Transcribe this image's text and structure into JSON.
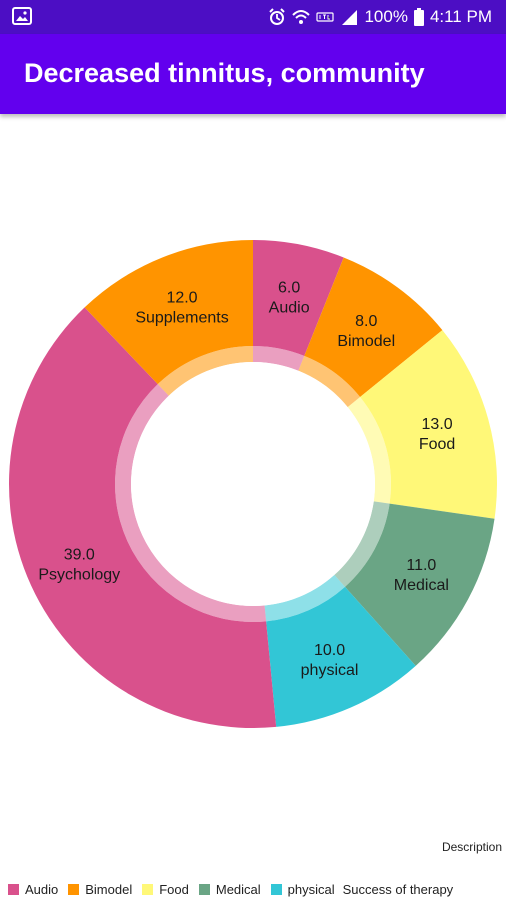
{
  "status_bar": {
    "battery": "100%",
    "time": "4:11 PM",
    "left_icon": "image-icon",
    "icons": [
      "alarm-icon",
      "wifi-icon",
      "lte-icon",
      "signal-icon",
      "battery-icon"
    ]
  },
  "app_bar": {
    "title": "Decreased tinnitus, community"
  },
  "chart_data": {
    "type": "pie",
    "donut": true,
    "categories": [
      "Audio",
      "Bimodel",
      "Food",
      "Medical",
      "physical",
      "Psychology",
      "Supplements"
    ],
    "values": [
      6.0,
      8.0,
      13.0,
      11.0,
      10.0,
      39.0,
      12.0
    ],
    "value_labels": [
      "6.0",
      "8.0",
      "13.0",
      "11.0",
      "10.0",
      "39.0",
      "12.0"
    ],
    "colors": [
      "#d9518c",
      "#ff9400",
      "#fff878",
      "#6aa585",
      "#32c6d6",
      "#d9518c",
      "#ff9400"
    ],
    "legend": {
      "position": "bottom-left",
      "entries": [
        {
          "label": "Audio",
          "color": "#d9518c"
        },
        {
          "label": "Bimodel",
          "color": "#ff9400"
        },
        {
          "label": "Food",
          "color": "#fff878"
        },
        {
          "label": "Medical",
          "color": "#6aa585"
        },
        {
          "label": "physical",
          "color": "#32c6d6"
        }
      ],
      "title": "Success of therapy"
    },
    "description": "Description"
  }
}
